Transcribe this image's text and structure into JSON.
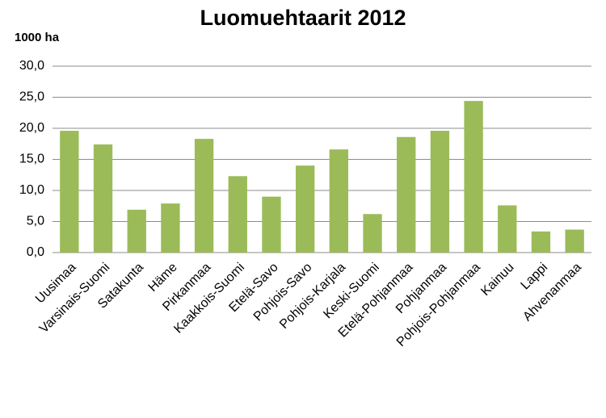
{
  "chart_data": {
    "type": "bar",
    "title": "Luomuehtaarit 2012",
    "y_label": "1000 ha",
    "categories": [
      "Uusimaa",
      "Varsinais-Suomi",
      "Satakunta",
      "Häme",
      "Pirkanmaa",
      "Kaakkois-Suomi",
      "Etelä-Savo",
      "Pohjois-Savo",
      "Pohjois-Karjala",
      "Keski-Suomi",
      "Etelä-Pohjanmaa",
      "Pohjanmaa",
      "Pohjois-Pohjanmaa",
      "Kainuu",
      "Lappi",
      "Ahvenanmaa"
    ],
    "values": [
      19.6,
      17.4,
      6.9,
      7.9,
      18.3,
      12.3,
      9.0,
      14.0,
      16.6,
      6.2,
      18.6,
      19.6,
      24.4,
      7.6,
      3.4,
      3.7
    ],
    "color": "#9bbb59",
    "ylim": [
      0,
      30
    ],
    "yticks": [
      {
        "value": 0,
        "label": "0,0"
      },
      {
        "value": 5,
        "label": "5,0"
      },
      {
        "value": 10,
        "label": "10,0"
      },
      {
        "value": 15,
        "label": "15,0"
      },
      {
        "value": 20,
        "label": "20,0"
      },
      {
        "value": 25,
        "label": "25,0"
      },
      {
        "value": 30,
        "label": "30,0"
      }
    ],
    "grid": true
  }
}
